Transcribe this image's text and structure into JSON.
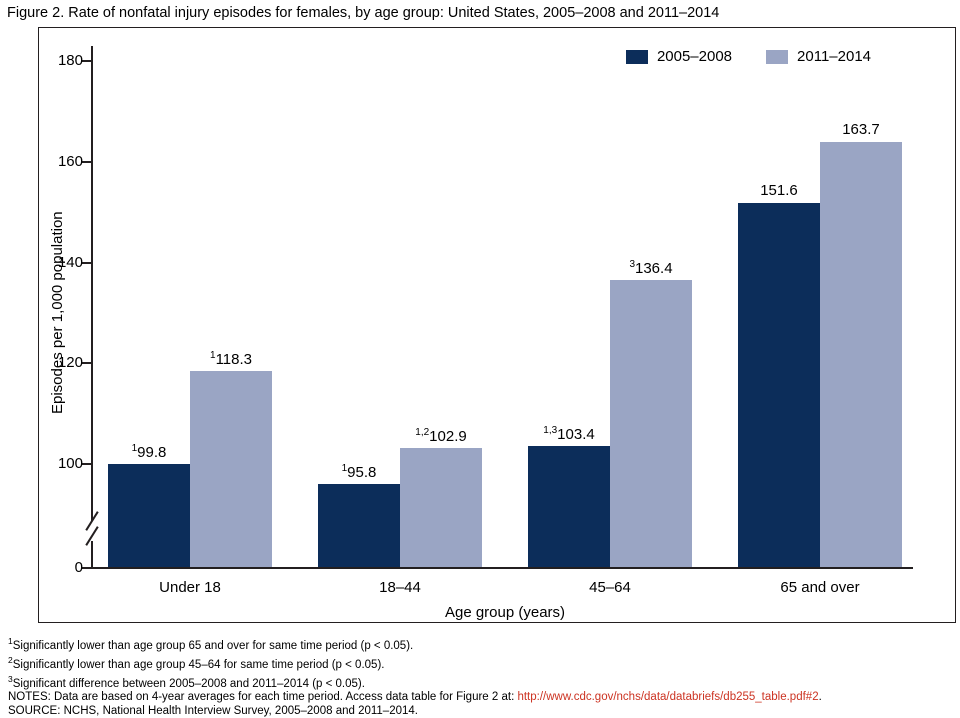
{
  "title": "Figure 2. Rate of nonfatal injury episodes for females, by age group: United States, 2005–2008 and 2011–2014",
  "chart_data": {
    "type": "bar",
    "categories": [
      "Under 18",
      "18–44",
      "45–64",
      "65 and over"
    ],
    "series": [
      {
        "name": "2005–2008",
        "color": "#0c2d5a",
        "values": [
          99.8,
          95.8,
          103.4,
          151.6
        ],
        "labels": [
          {
            "sup": "1",
            "text": "99.8"
          },
          {
            "sup": "1",
            "text": "95.8"
          },
          {
            "sup": "1,3",
            "text": "103.4"
          },
          {
            "sup": "",
            "text": "151.6"
          }
        ]
      },
      {
        "name": "2011–2014",
        "color": "#9aa5c4",
        "values": [
          118.3,
          102.9,
          136.4,
          163.7
        ],
        "labels": [
          {
            "sup": "1",
            "text": "118.3"
          },
          {
            "sup": "1,2",
            "text": "102.9"
          },
          {
            "sup": "3",
            "text": "136.4"
          },
          {
            "sup": "",
            "text": "163.7"
          }
        ]
      }
    ],
    "xlabel": "Age group (years)",
    "ylabel": "Episodes per 1,000 population",
    "y_ticks": [
      180,
      160,
      140,
      120,
      100,
      0
    ],
    "ylim": [
      0,
      180
    ],
    "axis_break": true,
    "grid": false,
    "legend_position": "top-right"
  },
  "footnotes": [
    {
      "sup": "1",
      "text": "Significantly lower than age group 65 and over for same time period (p < 0.05)."
    },
    {
      "sup": "2",
      "text": "Significantly lower than age group 45–64 for same time period (p < 0.05)."
    },
    {
      "sup": "3",
      "text": "Significant difference between 2005–2008 and 2011–2014 (p < 0.05)."
    }
  ],
  "notes": {
    "prefix": "NOTES: Data are based on 4-year averages for each time period. Access data table for Figure 2 at: ",
    "link": "http://www.cdc.gov/nchs/data/databriefs/db255_table.pdf#2",
    "suffix": "."
  },
  "source": "SOURCE: NCHS, National Health Interview Survey, 2005–2008 and 2011–2014.",
  "colors": {
    "axis": "#231f20",
    "series1": "#0c2d5a",
    "series2": "#9aa5c4",
    "link": "#cc3322"
  }
}
